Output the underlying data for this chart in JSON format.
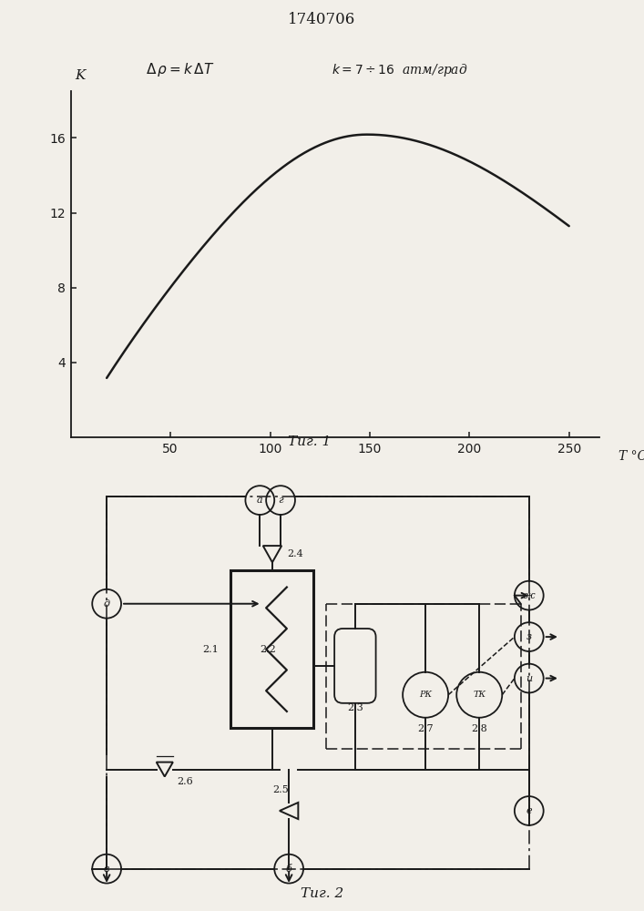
{
  "title_patent": "1740706",
  "fig1_label": "Τиг. 1",
  "fig2_label": "Τиг. 2",
  "graph": {
    "x_ticks": [
      50,
      100,
      150,
      200,
      250
    ],
    "y_ticks": [
      4,
      8,
      12,
      16
    ],
    "x_label": "T °C",
    "y_label": "K",
    "x_min": 0,
    "x_max": 265,
    "y_min": 0,
    "y_max": 18.5
  },
  "bg_color": "#f2efe9",
  "line_color": "#1a1a1a"
}
